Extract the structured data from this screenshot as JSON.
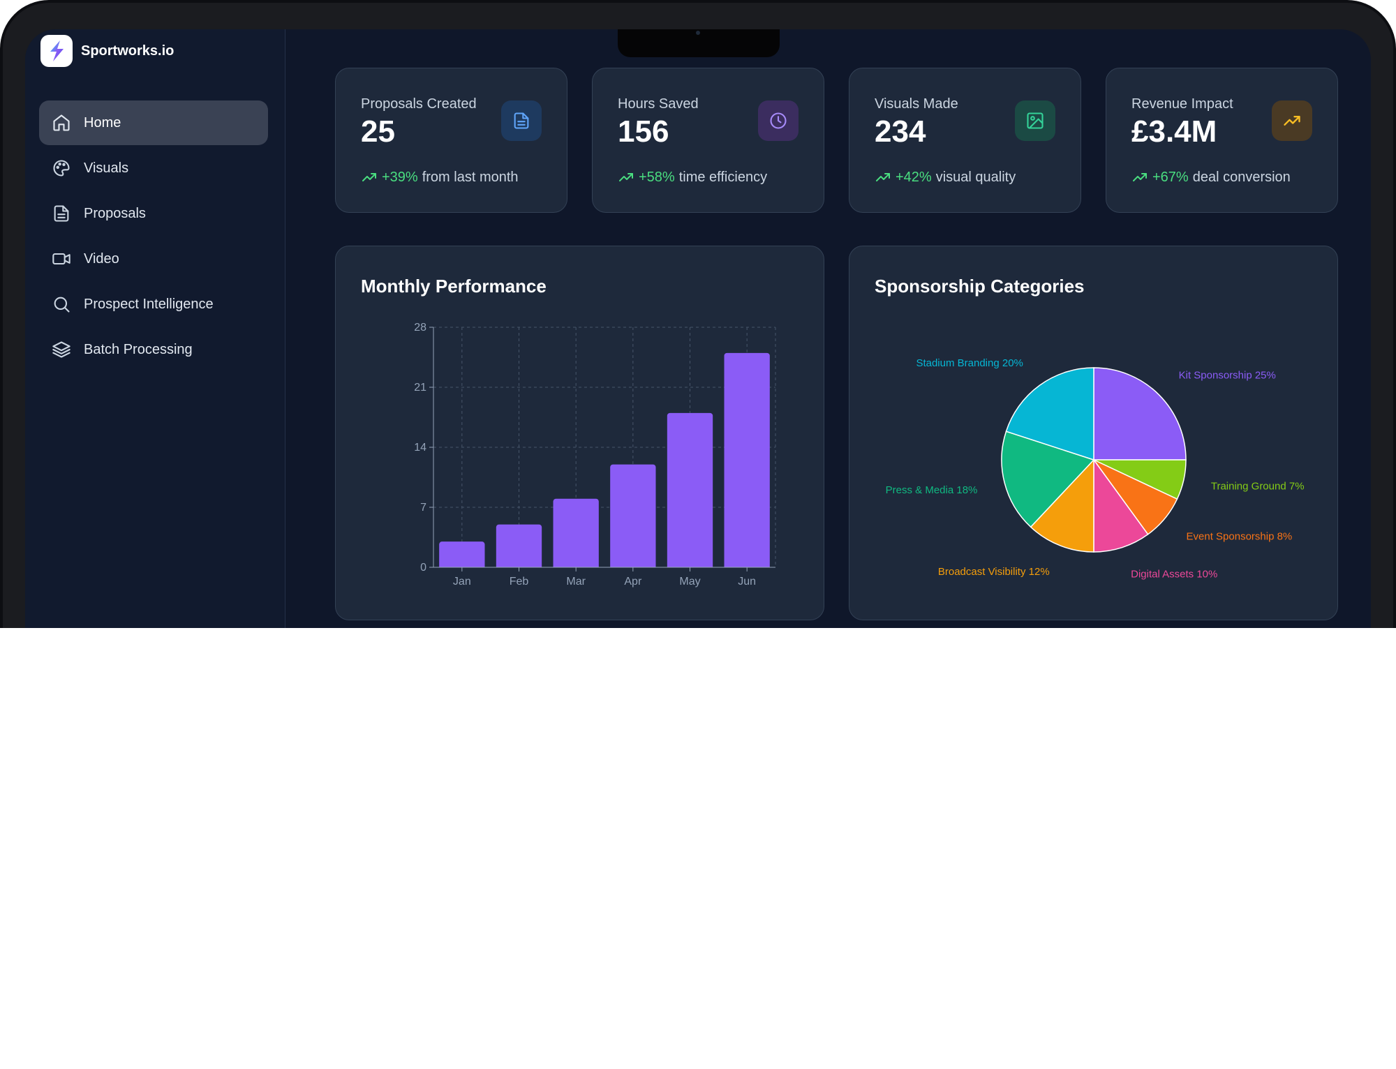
{
  "app": {
    "brand": "Sportworks.io"
  },
  "sidebar": {
    "items": [
      {
        "label": "Home",
        "icon": "home-icon",
        "active": true
      },
      {
        "label": "Visuals",
        "icon": "palette-icon",
        "active": false
      },
      {
        "label": "Proposals",
        "icon": "document-icon",
        "active": false
      },
      {
        "label": "Video",
        "icon": "video-camera-icon",
        "active": false
      },
      {
        "label": "Prospect Intelligence",
        "icon": "search-icon",
        "active": false
      },
      {
        "label": "Batch Processing",
        "icon": "layers-icon",
        "active": false
      }
    ]
  },
  "stats": [
    {
      "label": "Proposals Created",
      "value": "25",
      "change": "+39%",
      "desc": "from last month",
      "icon": "document-icon",
      "icon_color": "#60a5fa",
      "icon_bg": "#1e3a5f"
    },
    {
      "label": "Hours Saved",
      "value": "156",
      "change": "+58%",
      "desc": "time efficiency",
      "icon": "clock-icon",
      "icon_color": "#a78bfa",
      "icon_bg": "#3b2d5f"
    },
    {
      "label": "Visuals Made",
      "value": "234",
      "change": "+42%",
      "desc": "visual quality",
      "icon": "image-icon",
      "icon_color": "#34d399",
      "icon_bg": "#1b4a44"
    },
    {
      "label": "Revenue Impact",
      "value": "£3.4M",
      "change": "+67%",
      "desc": "deal conversion",
      "icon": "trending-up-icon",
      "icon_color": "#fbbf24",
      "icon_bg": "#4a3a24"
    }
  ],
  "panels": {
    "monthly_title": "Monthly Performance",
    "categories_title": "Sponsorship Categories"
  },
  "chart_data": [
    {
      "type": "bar",
      "title": "Monthly Performance",
      "categories": [
        "Jan",
        "Feb",
        "Mar",
        "Apr",
        "May",
        "Jun"
      ],
      "values": [
        3,
        5,
        8,
        12,
        18,
        25
      ],
      "ylim": [
        0,
        28
      ],
      "yticks": [
        0,
        7,
        14,
        21,
        28
      ],
      "grid": true,
      "bar_color": "#8b5cf6"
    },
    {
      "type": "pie",
      "title": "Sponsorship Categories",
      "slices": [
        {
          "label": "Kit Sponsorship",
          "value": 25,
          "text": "Kit Sponsorship 25%",
          "color": "#8b5cf6"
        },
        {
          "label": "Training Ground",
          "value": 7,
          "text": "Training Ground 7%",
          "color": "#84cc16"
        },
        {
          "label": "Event Sponsorship",
          "value": 8,
          "text": "Event Sponsorship 8%",
          "color": "#f97316"
        },
        {
          "label": "Digital Assets",
          "value": 10,
          "text": "Digital Assets 10%",
          "color": "#ec4899"
        },
        {
          "label": "Broadcast Visibility",
          "value": 12,
          "text": "Broadcast Visibility 12%",
          "color": "#f59e0b"
        },
        {
          "label": "Press & Media",
          "value": 18,
          "text": "Press & Media 18%",
          "color": "#10b981"
        },
        {
          "label": "Stadium Branding",
          "value": 20,
          "text": "Stadium Branding 20%",
          "color": "#06b6d4"
        }
      ]
    }
  ]
}
